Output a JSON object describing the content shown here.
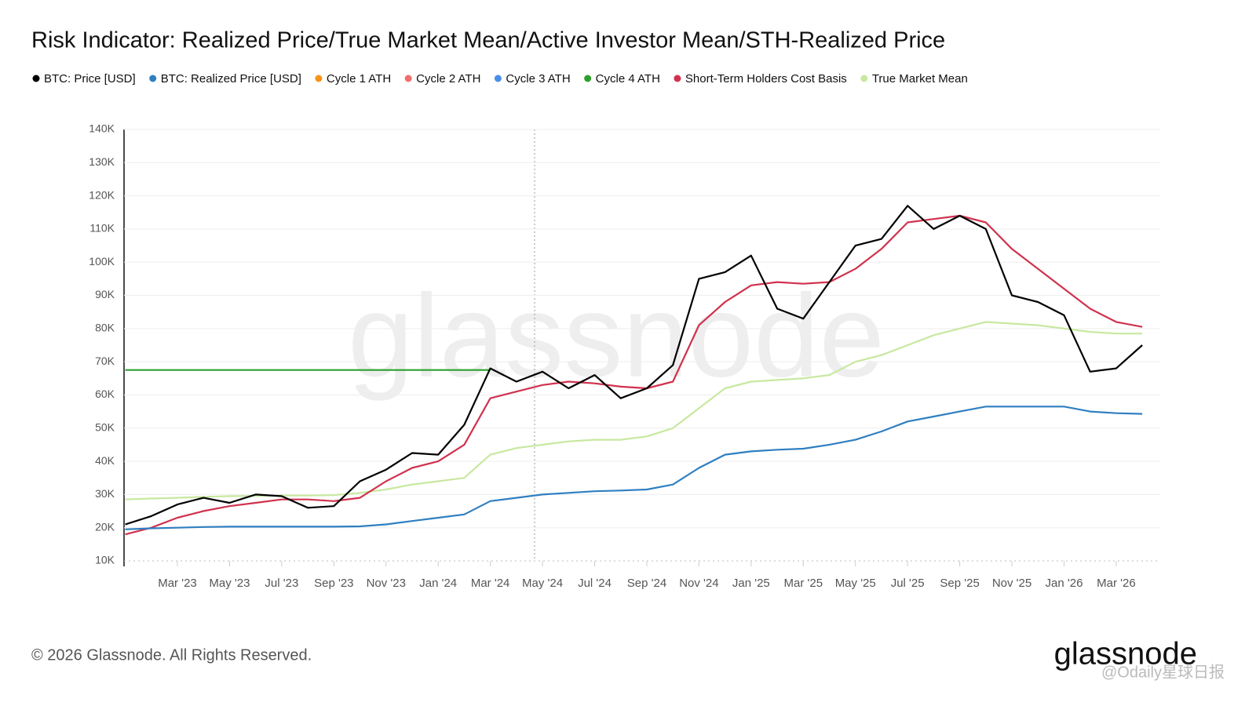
{
  "chart_data": {
    "type": "line",
    "title": "Risk Indicator: Realized Price/True Market Mean/Active Investor Mean/STH-Realized Price",
    "categories": [
      null,
      null,
      "Mar '23",
      null,
      "May '23",
      null,
      "Jul '23",
      null,
      "Sep '23",
      null,
      "Nov '23",
      null,
      "Jan '24",
      null,
      "Mar '24",
      null,
      "May '24",
      null,
      "Jul '24",
      null,
      "Sep '24",
      null,
      "Nov '24",
      null,
      "Jan '25",
      null,
      "Mar '25",
      null,
      "May '25",
      null,
      "Jul '25",
      null,
      "Sep '25",
      null,
      "Nov '25",
      null,
      "Jan '26",
      null,
      "Mar '26",
      null
    ],
    "series": [
      {
        "name": "BTC: Price [USD]",
        "color": "#000000",
        "values": [
          21000,
          23500,
          27000,
          29000,
          27500,
          30000,
          29500,
          26000,
          26500,
          34000,
          37500,
          42500,
          42000,
          51000,
          68000,
          64000,
          67000,
          62000,
          66000,
          59000,
          62000,
          69000,
          95000,
          97000,
          102000,
          86000,
          83000,
          94000,
          105000,
          107000,
          117000,
          110000,
          114000,
          110000,
          90000,
          88000,
          84000,
          67000,
          68000,
          75000
        ]
      },
      {
        "name": "BTC: Realized Price [USD]",
        "color": "#2f7fc1",
        "values": [
          19500,
          19800,
          20000,
          20200,
          20300,
          20300,
          20300,
          20300,
          20300,
          20400,
          21000,
          22000,
          23000,
          24000,
          28000,
          29000,
          30000,
          30500,
          31000,
          31200,
          31500,
          33000,
          38000,
          42000,
          43000,
          43500,
          43800,
          45000,
          46500,
          49000,
          52000,
          53500,
          55000,
          56500,
          56500,
          56500,
          56500,
          55000,
          54500,
          54300
        ]
      },
      {
        "name": "Cycle 1 ATH",
        "color": "#f7931a",
        "values": [
          null,
          null,
          null,
          null,
          null,
          null,
          null,
          null,
          null,
          null,
          null,
          null,
          null,
          null,
          null,
          null,
          null,
          null,
          null,
          null,
          null,
          null,
          null,
          null,
          null,
          null,
          null,
          null,
          null,
          null,
          null,
          null,
          null,
          null,
          null,
          null,
          null,
          null,
          null,
          null
        ]
      },
      {
        "name": "Cycle 2 ATH",
        "color": "#f26d6d",
        "values": [
          null,
          null,
          null,
          null,
          null,
          null,
          null,
          null,
          null,
          null,
          null,
          null,
          null,
          null,
          null,
          null,
          null,
          null,
          null,
          null,
          null,
          null,
          null,
          null,
          null,
          null,
          null,
          null,
          null,
          null,
          null,
          null,
          null,
          null,
          null,
          null,
          null,
          null,
          null,
          null
        ]
      },
      {
        "name": "Cycle 3 ATH",
        "color": "#4a8fe7",
        "values": [
          null,
          null,
          null,
          null,
          null,
          null,
          null,
          null,
          null,
          null,
          null,
          null,
          null,
          null,
          null,
          null,
          null,
          null,
          null,
          null,
          null,
          null,
          null,
          null,
          null,
          null,
          null,
          null,
          null,
          null,
          null,
          null,
          null,
          null,
          null,
          null,
          null,
          null,
          null,
          null
        ]
      },
      {
        "name": "Cycle 4 ATH",
        "color": "#2ca02c",
        "values": [
          67500,
          67500,
          67500,
          67500,
          67500,
          67500,
          67500,
          67500,
          67500,
          67500,
          67500,
          67500,
          67500,
          67500,
          67500,
          null,
          null,
          null,
          null,
          null,
          null,
          null,
          null,
          null,
          null,
          null,
          null,
          null,
          null,
          null,
          null,
          null,
          null,
          null,
          null,
          null,
          null,
          null,
          null,
          null
        ]
      },
      {
        "name": "Short-Term Holders Cost Basis",
        "color": "#d0324e",
        "values": [
          18000,
          20000,
          23000,
          25000,
          26500,
          27500,
          28500,
          28500,
          28000,
          29000,
          34000,
          38000,
          40000,
          45000,
          59000,
          61000,
          63000,
          64000,
          63500,
          62500,
          62000,
          64000,
          81000,
          88000,
          93000,
          94000,
          93500,
          94000,
          98000,
          104000,
          112000,
          113000,
          114000,
          112000,
          104000,
          98000,
          92000,
          86000,
          82000,
          80500
        ]
      },
      {
        "name": "True Market Mean",
        "color": "#c8e8a0",
        "values": [
          28500,
          28800,
          29000,
          29300,
          29500,
          29600,
          29700,
          29700,
          29800,
          30500,
          31500,
          33000,
          34000,
          35000,
          42000,
          44000,
          45000,
          46000,
          46500,
          46500,
          47500,
          50000,
          56000,
          62000,
          64000,
          64500,
          65000,
          66000,
          70000,
          72000,
          75000,
          78000,
          80000,
          82000,
          81500,
          81000,
          80000,
          79000,
          78500,
          78500
        ]
      }
    ],
    "ylim": [
      10000,
      140000
    ],
    "yticks": [
      {
        "value": 10000,
        "label": "10K"
      },
      {
        "value": 20000,
        "label": "20K"
      },
      {
        "value": 30000,
        "label": "30K"
      },
      {
        "value": 40000,
        "label": "40K"
      },
      {
        "value": 50000,
        "label": "50K"
      },
      {
        "value": 60000,
        "label": "60K"
      },
      {
        "value": 70000,
        "label": "70K"
      },
      {
        "value": 80000,
        "label": "80K"
      },
      {
        "value": 90000,
        "label": "90K"
      },
      {
        "value": 100000,
        "label": "100K"
      },
      {
        "value": 110000,
        "label": "110K"
      },
      {
        "value": 120000,
        "label": "120K"
      },
      {
        "value": 130000,
        "label": "130K"
      },
      {
        "value": 140000,
        "label": "140K"
      }
    ],
    "grid": true,
    "watermark": "glassnode"
  },
  "footer": {
    "copyright": "© 2026 Glassnode. All Rights Reserved.",
    "logo": "glassnode",
    "source_watermark": "@Odaily星球日报"
  }
}
